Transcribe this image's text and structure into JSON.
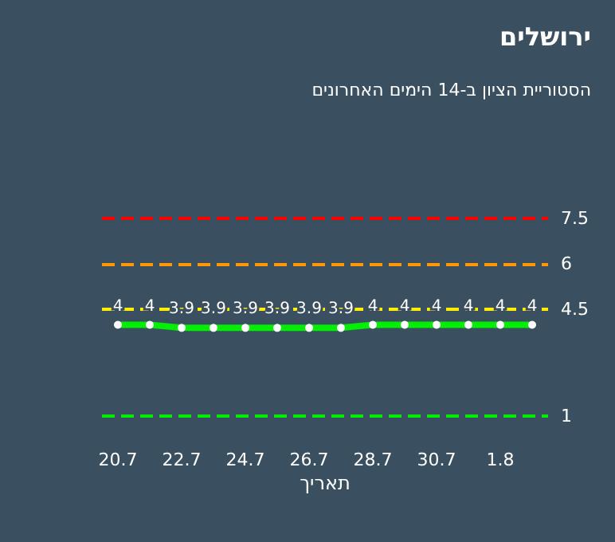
{
  "chart_data": {
    "type": "line",
    "title": "ירושלים",
    "subtitle": "הסטוריית הציון ב-14 הימים האחרונים",
    "xlabel": "תאריך",
    "categories": [
      "20.7",
      null,
      "22.7",
      null,
      "24.7",
      null,
      "26.7",
      null,
      "28.7",
      null,
      "30.7",
      null,
      "1.8",
      null
    ],
    "series": [
      {
        "color": "#00ee00",
        "values": [
          4,
          4,
          3.9,
          3.9,
          3.9,
          3.9,
          3.9,
          3.9,
          4,
          4,
          4,
          4,
          4,
          4
        ]
      }
    ],
    "ylim": [
      1,
      7.5
    ],
    "yticks": [
      1,
      4.5,
      6,
      7.5
    ],
    "data_labels": true,
    "marker": "circle",
    "line_style": "solid",
    "grid": false,
    "ref_lines": [
      {
        "axis": "y",
        "value": 7.5,
        "color": "#ff0000",
        "line_style": "dashed"
      },
      {
        "axis": "y",
        "value": 6,
        "color": "#ff9900",
        "line_style": "dashed"
      },
      {
        "axis": "y",
        "value": 4.5,
        "color": "#ffee00",
        "line_style": "dashed"
      },
      {
        "axis": "y",
        "value": 1,
        "color": "#00ee00",
        "line_style": "dashed"
      }
    ]
  }
}
